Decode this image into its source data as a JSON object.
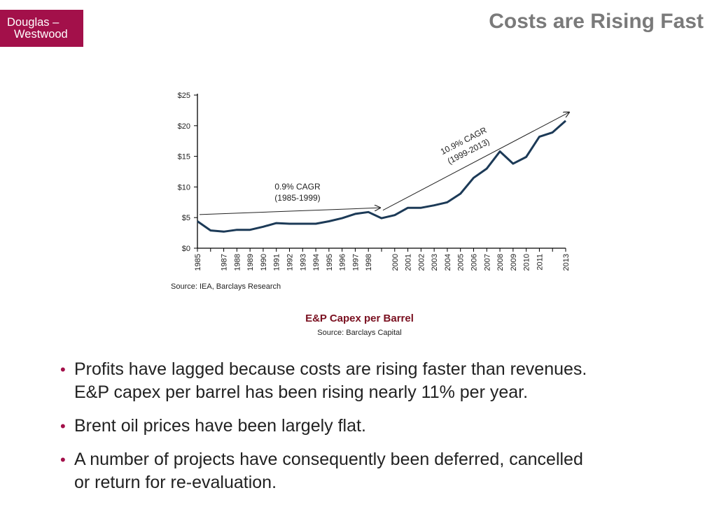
{
  "logo": {
    "line1": "Douglas –",
    "line2": "Westwood"
  },
  "slide_title": "Costs are Rising Fast",
  "chart_data": {
    "type": "line",
    "x": [
      1985,
      1986,
      1987,
      1988,
      1989,
      1990,
      1991,
      1992,
      1993,
      1994,
      1995,
      1996,
      1997,
      1998,
      1999,
      2000,
      2001,
      2002,
      2003,
      2004,
      2005,
      2006,
      2007,
      2008,
      2009,
      2010,
      2011,
      2012,
      2013
    ],
    "series": [
      {
        "values": [
          4.4,
          2.9,
          2.7,
          3.0,
          3.0,
          3.5,
          4.1,
          4.0,
          4.0,
          4.0,
          4.4,
          4.9,
          5.6,
          5.9,
          4.9,
          5.4,
          6.6,
          6.6,
          7.0,
          7.5,
          8.9,
          11.5,
          13.0,
          15.8,
          13.8,
          14.9,
          18.2,
          18.9,
          20.8
        ]
      }
    ],
    "xticks": [
      "1985",
      "1987",
      "1988",
      "1989",
      "1990",
      "1991",
      "1992",
      "1993",
      "1994",
      "1995",
      "1996",
      "1997",
      "1998",
      "2000",
      "2001",
      "2002",
      "2003",
      "2004",
      "2005",
      "2006",
      "2007",
      "2008",
      "2009",
      "2010",
      "2011",
      "2013"
    ],
    "yticks": [
      "$0",
      "$5",
      "$10",
      "$15",
      "$20",
      "$25"
    ],
    "ylim": [
      0,
      25
    ],
    "annotations": [
      {
        "line1": "0.9% CAGR",
        "line2": "(1985-1999)"
      },
      {
        "line1": "10.9% CAGR",
        "line2": "(1999-2013)"
      }
    ],
    "source": "Source: IEA, Barclays Research",
    "title": "E&P Capex per Barrel",
    "title_source": "Source: Barclays Capital",
    "colors": {
      "line": "#1c3a57",
      "axis": "#000000",
      "title": "#7a1020"
    }
  },
  "bullets": [
    {
      "lines": [
        "Profits have lagged because costs are rising faster than revenues.",
        "E&P capex per barrel has been rising nearly 11% per year."
      ]
    },
    {
      "lines": [
        "Brent oil prices have been largely flat."
      ]
    },
    {
      "lines": [
        "A number of projects have consequently been deferred, cancelled",
        "or return for re-evaluation."
      ]
    }
  ],
  "colors": {
    "accent": "#a3104a",
    "title_gray": "#7a7a7a"
  }
}
